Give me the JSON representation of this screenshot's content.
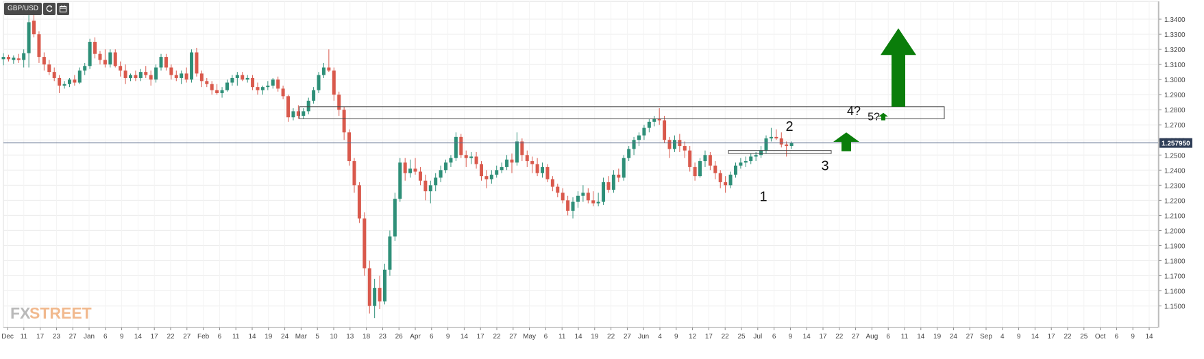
{
  "toolbar": {
    "symbol": "GBP/USD",
    "buttons": [
      {
        "name": "refresh-icon"
      },
      {
        "name": "calendar-icon"
      }
    ]
  },
  "colors": {
    "up": "#2e8f78",
    "down": "#d9594c",
    "arrow": "#0a7d0a",
    "grid": "#ececec",
    "axis_text": "#444444",
    "price_line": "#5b6b8c",
    "price_label_bg": "#2f3e57",
    "watermark_fx": "#b9b9b9",
    "watermark_street": "#f1b98e"
  },
  "watermark": {
    "part1": "FX",
    "part2": "STREET"
  },
  "chart_data": {
    "type": "candlestick",
    "title": "GBP/USD",
    "timeframe": "daily",
    "ylim": [
      1.143,
      1.345
    ],
    "y_ticks": [
      "1.3400",
      "1.3300",
      "1.3200",
      "1.3100",
      "1.3000",
      "1.2900",
      "1.2800",
      "1.2700",
      "1.2600",
      "1.2500",
      "1.2400",
      "1.2300",
      "1.2200",
      "1.2100",
      "1.2000",
      "1.1900",
      "1.1800",
      "1.1700",
      "1.1600",
      "1.1500"
    ],
    "current_price": {
      "value": 1.258,
      "label": "1.257950"
    },
    "x_ticks": [
      "Dec",
      "11",
      "17",
      "23",
      "27",
      "Jan",
      "6",
      "9",
      "14",
      "17",
      "22",
      "27",
      "Feb",
      "6",
      "11",
      "14",
      "19",
      "24",
      "Mar",
      "5",
      "10",
      "13",
      "18",
      "23",
      "26",
      "Apr",
      "6",
      "9",
      "14",
      "17",
      "22",
      "27",
      "May",
      "6",
      "11",
      "14",
      "19",
      "22",
      "27",
      "Jun",
      "4",
      "9",
      "12",
      "17",
      "22",
      "25",
      "Jul",
      "6",
      "9",
      "14",
      "17",
      "22",
      "27",
      "Aug",
      "6",
      "11",
      "14",
      "19",
      "24",
      "27",
      "Sep",
      "4",
      "9",
      "14",
      "17",
      "22",
      "25",
      "Oct",
      "6",
      "9",
      "14"
    ],
    "candles": [
      {
        "o": 1.3135,
        "h": 1.3175,
        "l": 1.3095,
        "c": 1.315
      },
      {
        "o": 1.315,
        "h": 1.3165,
        "l": 1.312,
        "c": 1.3135
      },
      {
        "o": 1.313,
        "h": 1.316,
        "l": 1.3105,
        "c": 1.3145
      },
      {
        "o": 1.314,
        "h": 1.317,
        "l": 1.311,
        "c": 1.313
      },
      {
        "o": 1.313,
        "h": 1.32,
        "l": 1.308,
        "c": 1.3175
      },
      {
        "o": 1.3175,
        "h": 1.345,
        "l": 1.308,
        "c": 1.338
      },
      {
        "o": 1.339,
        "h": 1.345,
        "l": 1.328,
        "c": 1.33
      },
      {
        "o": 1.33,
        "h": 1.332,
        "l": 1.311,
        "c": 1.315
      },
      {
        "o": 1.315,
        "h": 1.318,
        "l": 1.306,
        "c": 1.31
      },
      {
        "o": 1.31,
        "h": 1.313,
        "l": 1.303,
        "c": 1.305
      },
      {
        "o": 1.305,
        "h": 1.308,
        "l": 1.299,
        "c": 1.301
      },
      {
        "o": 1.301,
        "h": 1.303,
        "l": 1.291,
        "c": 1.296
      },
      {
        "o": 1.296,
        "h": 1.299,
        "l": 1.294,
        "c": 1.297
      },
      {
        "o": 1.297,
        "h": 1.301,
        "l": 1.295,
        "c": 1.3
      },
      {
        "o": 1.3,
        "h": 1.303,
        "l": 1.296,
        "c": 1.298
      },
      {
        "o": 1.298,
        "h": 1.308,
        "l": 1.297,
        "c": 1.306
      },
      {
        "o": 1.306,
        "h": 1.311,
        "l": 1.303,
        "c": 1.309
      },
      {
        "o": 1.309,
        "h": 1.327,
        "l": 1.307,
        "c": 1.325
      },
      {
        "o": 1.325,
        "h": 1.328,
        "l": 1.314,
        "c": 1.317
      },
      {
        "o": 1.317,
        "h": 1.319,
        "l": 1.31,
        "c": 1.313
      },
      {
        "o": 1.313,
        "h": 1.32,
        "l": 1.308,
        "c": 1.31
      },
      {
        "o": 1.31,
        "h": 1.32,
        "l": 1.308,
        "c": 1.318
      },
      {
        "o": 1.318,
        "h": 1.32,
        "l": 1.308,
        "c": 1.309
      },
      {
        "o": 1.309,
        "h": 1.312,
        "l": 1.302,
        "c": 1.306
      },
      {
        "o": 1.306,
        "h": 1.31,
        "l": 1.297,
        "c": 1.301
      },
      {
        "o": 1.301,
        "h": 1.304,
        "l": 1.299,
        "c": 1.303
      },
      {
        "o": 1.303,
        "h": 1.306,
        "l": 1.299,
        "c": 1.301
      },
      {
        "o": 1.301,
        "h": 1.307,
        "l": 1.299,
        "c": 1.305
      },
      {
        "o": 1.305,
        "h": 1.309,
        "l": 1.301,
        "c": 1.303
      },
      {
        "o": 1.303,
        "h": 1.306,
        "l": 1.296,
        "c": 1.3
      },
      {
        "o": 1.3,
        "h": 1.31,
        "l": 1.298,
        "c": 1.308
      },
      {
        "o": 1.308,
        "h": 1.317,
        "l": 1.306,
        "c": 1.315
      },
      {
        "o": 1.315,
        "h": 1.317,
        "l": 1.306,
        "c": 1.308
      },
      {
        "o": 1.308,
        "h": 1.31,
        "l": 1.3,
        "c": 1.303
      },
      {
        "o": 1.303,
        "h": 1.306,
        "l": 1.299,
        "c": 1.301
      },
      {
        "o": 1.301,
        "h": 1.306,
        "l": 1.297,
        "c": 1.304
      },
      {
        "o": 1.304,
        "h": 1.308,
        "l": 1.298,
        "c": 1.3
      },
      {
        "o": 1.3,
        "h": 1.32,
        "l": 1.298,
        "c": 1.318
      },
      {
        "o": 1.318,
        "h": 1.321,
        "l": 1.302,
        "c": 1.304
      },
      {
        "o": 1.304,
        "h": 1.306,
        "l": 1.295,
        "c": 1.299
      },
      {
        "o": 1.299,
        "h": 1.301,
        "l": 1.295,
        "c": 1.297
      },
      {
        "o": 1.297,
        "h": 1.299,
        "l": 1.29,
        "c": 1.293
      },
      {
        "o": 1.293,
        "h": 1.297,
        "l": 1.29,
        "c": 1.291
      },
      {
        "o": 1.291,
        "h": 1.295,
        "l": 1.288,
        "c": 1.293
      },
      {
        "o": 1.293,
        "h": 1.3,
        "l": 1.292,
        "c": 1.298
      },
      {
        "o": 1.298,
        "h": 1.303,
        "l": 1.296,
        "c": 1.301
      },
      {
        "o": 1.301,
        "h": 1.305,
        "l": 1.296,
        "c": 1.303
      },
      {
        "o": 1.303,
        "h": 1.305,
        "l": 1.299,
        "c": 1.3
      },
      {
        "o": 1.3,
        "h": 1.303,
        "l": 1.298,
        "c": 1.301
      },
      {
        "o": 1.301,
        "h": 1.303,
        "l": 1.293,
        "c": 1.295
      },
      {
        "o": 1.295,
        "h": 1.298,
        "l": 1.29,
        "c": 1.293
      },
      {
        "o": 1.293,
        "h": 1.296,
        "l": 1.29,
        "c": 1.295
      },
      {
        "o": 1.295,
        "h": 1.299,
        "l": 1.293,
        "c": 1.296
      },
      {
        "o": 1.296,
        "h": 1.301,
        "l": 1.294,
        "c": 1.3
      },
      {
        "o": 1.3,
        "h": 1.302,
        "l": 1.292,
        "c": 1.294
      },
      {
        "o": 1.294,
        "h": 1.296,
        "l": 1.287,
        "c": 1.289
      },
      {
        "o": 1.289,
        "h": 1.29,
        "l": 1.272,
        "c": 1.275
      },
      {
        "o": 1.275,
        "h": 1.281,
        "l": 1.273,
        "c": 1.279
      },
      {
        "o": 1.279,
        "h": 1.283,
        "l": 1.274,
        "c": 1.276
      },
      {
        "o": 1.276,
        "h": 1.281,
        "l": 1.274,
        "c": 1.279
      },
      {
        "o": 1.279,
        "h": 1.288,
        "l": 1.277,
        "c": 1.286
      },
      {
        "o": 1.286,
        "h": 1.295,
        "l": 1.284,
        "c": 1.293
      },
      {
        "o": 1.293,
        "h": 1.305,
        "l": 1.291,
        "c": 1.303
      },
      {
        "o": 1.303,
        "h": 1.311,
        "l": 1.301,
        "c": 1.308
      },
      {
        "o": 1.308,
        "h": 1.32,
        "l": 1.305,
        "c": 1.306
      },
      {
        "o": 1.306,
        "h": 1.308,
        "l": 1.286,
        "c": 1.29
      },
      {
        "o": 1.29,
        "h": 1.292,
        "l": 1.276,
        "c": 1.28
      },
      {
        "o": 1.28,
        "h": 1.282,
        "l": 1.26,
        "c": 1.265
      },
      {
        "o": 1.265,
        "h": 1.267,
        "l": 1.243,
        "c": 1.246
      },
      {
        "o": 1.246,
        "h": 1.248,
        "l": 1.225,
        "c": 1.23
      },
      {
        "o": 1.23,
        "h": 1.232,
        "l": 1.205,
        "c": 1.208
      },
      {
        "o": 1.208,
        "h": 1.212,
        "l": 1.17,
        "c": 1.175
      },
      {
        "o": 1.175,
        "h": 1.18,
        "l": 1.145,
        "c": 1.15
      },
      {
        "o": 1.15,
        "h": 1.168,
        "l": 1.142,
        "c": 1.162
      },
      {
        "o": 1.162,
        "h": 1.17,
        "l": 1.148,
        "c": 1.153
      },
      {
        "o": 1.153,
        "h": 1.178,
        "l": 1.151,
        "c": 1.174
      },
      {
        "o": 1.174,
        "h": 1.2,
        "l": 1.17,
        "c": 1.196
      },
      {
        "o": 1.196,
        "h": 1.225,
        "l": 1.193,
        "c": 1.221
      },
      {
        "o": 1.221,
        "h": 1.248,
        "l": 1.219,
        "c": 1.245
      },
      {
        "o": 1.245,
        "h": 1.248,
        "l": 1.233,
        "c": 1.238
      },
      {
        "o": 1.238,
        "h": 1.247,
        "l": 1.235,
        "c": 1.241
      },
      {
        "o": 1.241,
        "h": 1.248,
        "l": 1.237,
        "c": 1.239
      },
      {
        "o": 1.239,
        "h": 1.242,
        "l": 1.23,
        "c": 1.233
      },
      {
        "o": 1.233,
        "h": 1.237,
        "l": 1.22,
        "c": 1.226
      },
      {
        "o": 1.226,
        "h": 1.233,
        "l": 1.218,
        "c": 1.23
      },
      {
        "o": 1.23,
        "h": 1.238,
        "l": 1.226,
        "c": 1.235
      },
      {
        "o": 1.235,
        "h": 1.243,
        "l": 1.232,
        "c": 1.24
      },
      {
        "o": 1.24,
        "h": 1.247,
        "l": 1.238,
        "c": 1.245
      },
      {
        "o": 1.245,
        "h": 1.25,
        "l": 1.242,
        "c": 1.248
      },
      {
        "o": 1.248,
        "h": 1.265,
        "l": 1.246,
        "c": 1.262
      },
      {
        "o": 1.262,
        "h": 1.264,
        "l": 1.248,
        "c": 1.25
      },
      {
        "o": 1.25,
        "h": 1.253,
        "l": 1.242,
        "c": 1.248
      },
      {
        "o": 1.248,
        "h": 1.252,
        "l": 1.244,
        "c": 1.249
      },
      {
        "o": 1.249,
        "h": 1.252,
        "l": 1.241,
        "c": 1.244
      },
      {
        "o": 1.244,
        "h": 1.246,
        "l": 1.233,
        "c": 1.236
      },
      {
        "o": 1.236,
        "h": 1.24,
        "l": 1.228,
        "c": 1.234
      },
      {
        "o": 1.234,
        "h": 1.24,
        "l": 1.231,
        "c": 1.237
      },
      {
        "o": 1.237,
        "h": 1.243,
        "l": 1.235,
        "c": 1.24
      },
      {
        "o": 1.24,
        "h": 1.245,
        "l": 1.238,
        "c": 1.242
      },
      {
        "o": 1.242,
        "h": 1.25,
        "l": 1.24,
        "c": 1.247
      },
      {
        "o": 1.247,
        "h": 1.251,
        "l": 1.238,
        "c": 1.245
      },
      {
        "o": 1.245,
        "h": 1.265,
        "l": 1.243,
        "c": 1.259
      },
      {
        "o": 1.259,
        "h": 1.261,
        "l": 1.246,
        "c": 1.25
      },
      {
        "o": 1.25,
        "h": 1.253,
        "l": 1.242,
        "c": 1.246
      },
      {
        "o": 1.246,
        "h": 1.249,
        "l": 1.238,
        "c": 1.244
      },
      {
        "o": 1.244,
        "h": 1.248,
        "l": 1.236,
        "c": 1.238
      },
      {
        "o": 1.238,
        "h": 1.245,
        "l": 1.235,
        "c": 1.242
      },
      {
        "o": 1.242,
        "h": 1.244,
        "l": 1.232,
        "c": 1.234
      },
      {
        "o": 1.234,
        "h": 1.236,
        "l": 1.226,
        "c": 1.229
      },
      {
        "o": 1.229,
        "h": 1.231,
        "l": 1.222,
        "c": 1.225
      },
      {
        "o": 1.225,
        "h": 1.228,
        "l": 1.218,
        "c": 1.22
      },
      {
        "o": 1.22,
        "h": 1.223,
        "l": 1.21,
        "c": 1.213
      },
      {
        "o": 1.213,
        "h": 1.222,
        "l": 1.208,
        "c": 1.219
      },
      {
        "o": 1.219,
        "h": 1.226,
        "l": 1.215,
        "c": 1.223
      },
      {
        "o": 1.223,
        "h": 1.23,
        "l": 1.219,
        "c": 1.225
      },
      {
        "o": 1.225,
        "h": 1.228,
        "l": 1.218,
        "c": 1.22
      },
      {
        "o": 1.22,
        "h": 1.226,
        "l": 1.216,
        "c": 1.218
      },
      {
        "o": 1.218,
        "h": 1.225,
        "l": 1.216,
        "c": 1.219
      },
      {
        "o": 1.219,
        "h": 1.235,
        "l": 1.217,
        "c": 1.232
      },
      {
        "o": 1.232,
        "h": 1.236,
        "l": 1.225,
        "c": 1.227
      },
      {
        "o": 1.227,
        "h": 1.24,
        "l": 1.225,
        "c": 1.237
      },
      {
        "o": 1.237,
        "h": 1.241,
        "l": 1.232,
        "c": 1.235
      },
      {
        "o": 1.235,
        "h": 1.25,
        "l": 1.233,
        "c": 1.248
      },
      {
        "o": 1.248,
        "h": 1.256,
        "l": 1.246,
        "c": 1.254
      },
      {
        "o": 1.254,
        "h": 1.262,
        "l": 1.25,
        "c": 1.26
      },
      {
        "o": 1.26,
        "h": 1.265,
        "l": 1.256,
        "c": 1.263
      },
      {
        "o": 1.263,
        "h": 1.27,
        "l": 1.26,
        "c": 1.268
      },
      {
        "o": 1.268,
        "h": 1.274,
        "l": 1.265,
        "c": 1.272
      },
      {
        "o": 1.272,
        "h": 1.276,
        "l": 1.269,
        "c": 1.274
      },
      {
        "o": 1.274,
        "h": 1.281,
        "l": 1.27,
        "c": 1.273
      },
      {
        "o": 1.273,
        "h": 1.276,
        "l": 1.258,
        "c": 1.26
      },
      {
        "o": 1.26,
        "h": 1.262,
        "l": 1.248,
        "c": 1.254
      },
      {
        "o": 1.254,
        "h": 1.263,
        "l": 1.252,
        "c": 1.26
      },
      {
        "o": 1.26,
        "h": 1.264,
        "l": 1.252,
        "c": 1.256
      },
      {
        "o": 1.256,
        "h": 1.259,
        "l": 1.248,
        "c": 1.253
      },
      {
        "o": 1.253,
        "h": 1.256,
        "l": 1.239,
        "c": 1.242
      },
      {
        "o": 1.242,
        "h": 1.245,
        "l": 1.233,
        "c": 1.236
      },
      {
        "o": 1.236,
        "h": 1.248,
        "l": 1.235,
        "c": 1.246
      },
      {
        "o": 1.246,
        "h": 1.253,
        "l": 1.242,
        "c": 1.25
      },
      {
        "o": 1.25,
        "h": 1.252,
        "l": 1.24,
        "c": 1.243
      },
      {
        "o": 1.243,
        "h": 1.246,
        "l": 1.234,
        "c": 1.238
      },
      {
        "o": 1.238,
        "h": 1.24,
        "l": 1.228,
        "c": 1.232
      },
      {
        "o": 1.232,
        "h": 1.236,
        "l": 1.225,
        "c": 1.23
      },
      {
        "o": 1.23,
        "h": 1.239,
        "l": 1.228,
        "c": 1.237
      },
      {
        "o": 1.237,
        "h": 1.245,
        "l": 1.235,
        "c": 1.243
      },
      {
        "o": 1.243,
        "h": 1.248,
        "l": 1.241,
        "c": 1.245
      },
      {
        "o": 1.245,
        "h": 1.249,
        "l": 1.242,
        "c": 1.246
      },
      {
        "o": 1.246,
        "h": 1.251,
        "l": 1.244,
        "c": 1.249
      },
      {
        "o": 1.249,
        "h": 1.252,
        "l": 1.246,
        "c": 1.25
      },
      {
        "o": 1.25,
        "h": 1.256,
        "l": 1.248,
        "c": 1.253
      },
      {
        "o": 1.253,
        "h": 1.263,
        "l": 1.251,
        "c": 1.261
      },
      {
        "o": 1.261,
        "h": 1.268,
        "l": 1.259,
        "c": 1.262
      },
      {
        "o": 1.262,
        "h": 1.267,
        "l": 1.26,
        "c": 1.261
      },
      {
        "o": 1.261,
        "h": 1.265,
        "l": 1.255,
        "c": 1.257
      },
      {
        "o": 1.257,
        "h": 1.259,
        "l": 1.249,
        "c": 1.256
      },
      {
        "o": 1.256,
        "h": 1.259,
        "l": 1.254,
        "c": 1.258
      }
    ],
    "annotations": {
      "resistance_box": {
        "y_low": 1.274,
        "y_high": 1.282
      },
      "support_box": {
        "y_low": 1.251,
        "y_high": 1.253
      },
      "wave_labels": [
        {
          "text": "1",
          "y": 1.2195
        },
        {
          "text": "2",
          "y": 1.266
        },
        {
          "text": "3",
          "y": 1.24
        },
        {
          "text": "4?",
          "y": 1.2765
        },
        {
          "text": "5?",
          "y": 1.273
        }
      ],
      "arrows": [
        {
          "name": "small-arrow",
          "y_base": 1.2525,
          "y_tip": 1.265
        },
        {
          "name": "tiny-arrow",
          "y_base": 1.273,
          "y_tip": 1.278
        },
        {
          "name": "large-arrow",
          "y_base": 1.282,
          "y_tip": 1.334
        }
      ]
    }
  }
}
